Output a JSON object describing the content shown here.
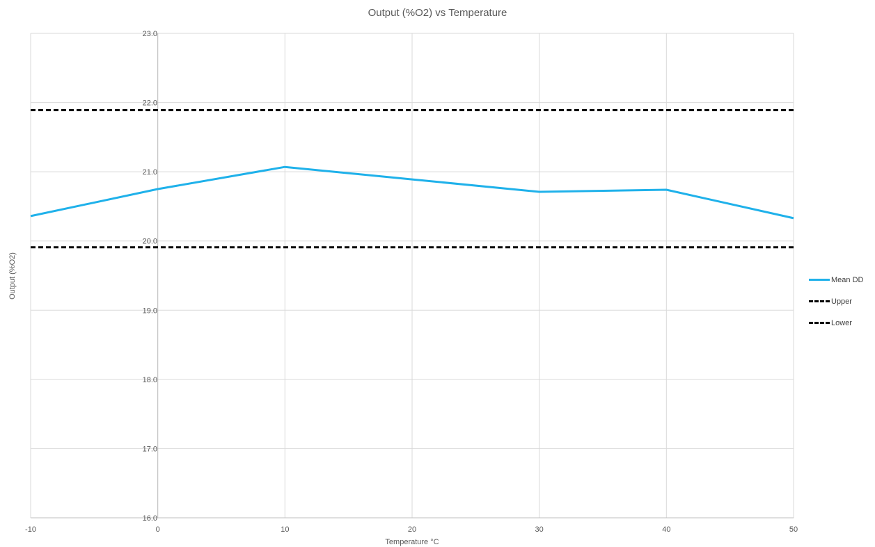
{
  "chart_data": {
    "type": "line",
    "title": "Output (%O2) vs Temperature",
    "xlabel": "Temperature °C",
    "ylabel": "Output (%O2)",
    "xlim": [
      -10,
      50
    ],
    "ylim": [
      16.0,
      23.0
    ],
    "x_ticks": [
      -10,
      0,
      10,
      20,
      30,
      40,
      50
    ],
    "y_ticks": [
      "16.0",
      "17.0",
      "18.0",
      "19.0",
      "20.0",
      "21.0",
      "22.0",
      "23.0"
    ],
    "grid": true,
    "legend_position": "right",
    "series": [
      {
        "name": "Mean DD",
        "color": "#1fb1ea",
        "style": "solid",
        "x": [
          -10,
          0,
          10,
          20,
          30,
          40,
          50
        ],
        "values": [
          20.36,
          20.75,
          21.07,
          20.89,
          20.71,
          20.74,
          20.33
        ]
      },
      {
        "name": "Upper",
        "color": "#000000",
        "style": "dashed",
        "x": [
          -10,
          50
        ],
        "values": [
          21.89,
          21.89
        ]
      },
      {
        "name": "Lower",
        "color": "#000000",
        "style": "dashed",
        "x": [
          -10,
          50
        ],
        "values": [
          19.91,
          19.91
        ]
      }
    ]
  }
}
